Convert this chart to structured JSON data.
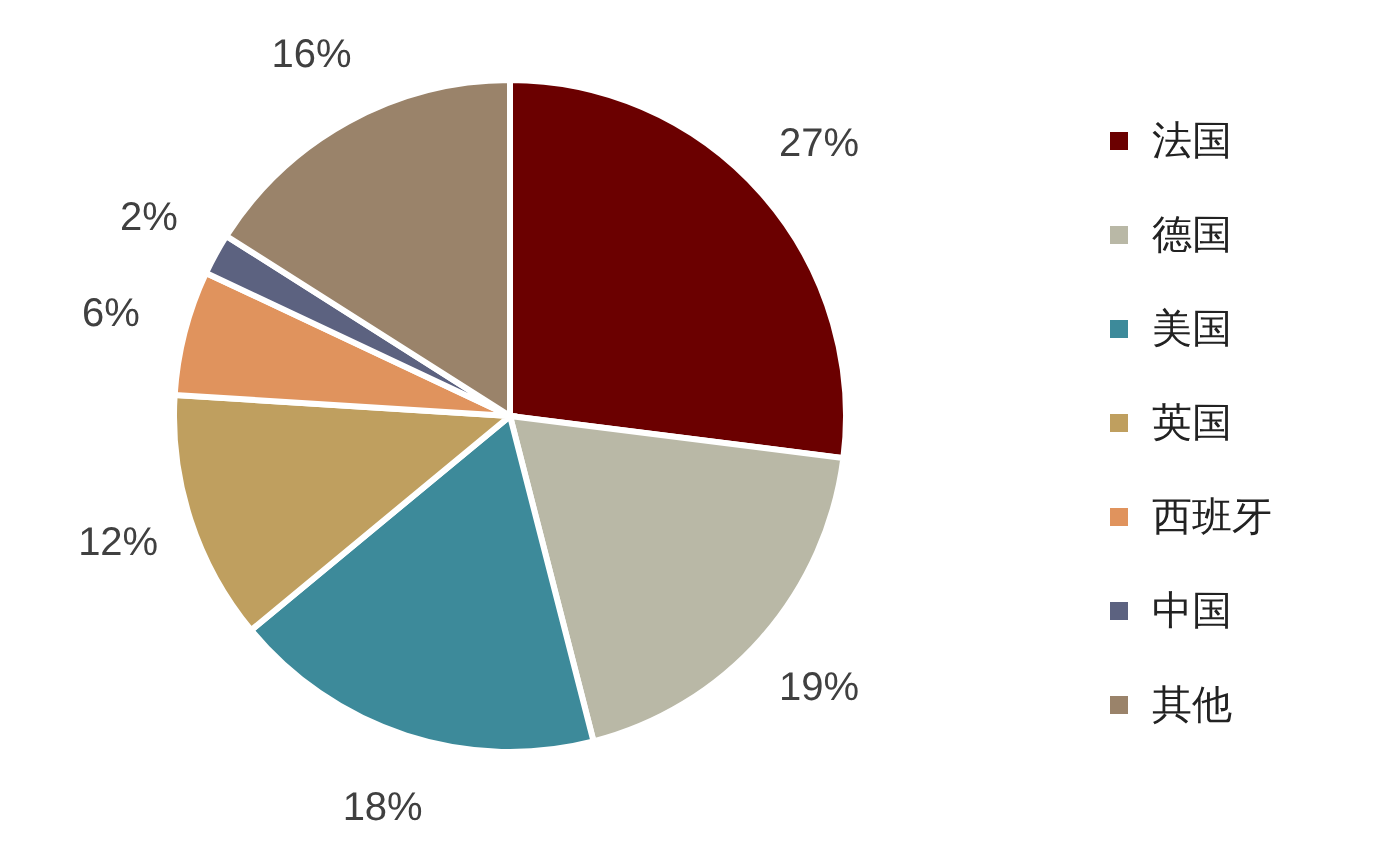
{
  "chart_data": {
    "type": "pie",
    "categories": [
      "法国",
      "德国",
      "美国",
      "英国",
      "西班牙",
      "中国",
      "其他"
    ],
    "values": [
      27,
      19,
      18,
      12,
      6,
      2,
      16
    ],
    "colors": [
      "#6b0000",
      "#b9b8a6",
      "#3d8a9a",
      "#bf9f5f",
      "#e0935d",
      "#5c6280",
      "#9a836a"
    ],
    "value_labels": [
      "27%",
      "19%",
      "18%",
      "12%",
      "6%",
      "2%",
      "16%"
    ],
    "legend": "right"
  }
}
